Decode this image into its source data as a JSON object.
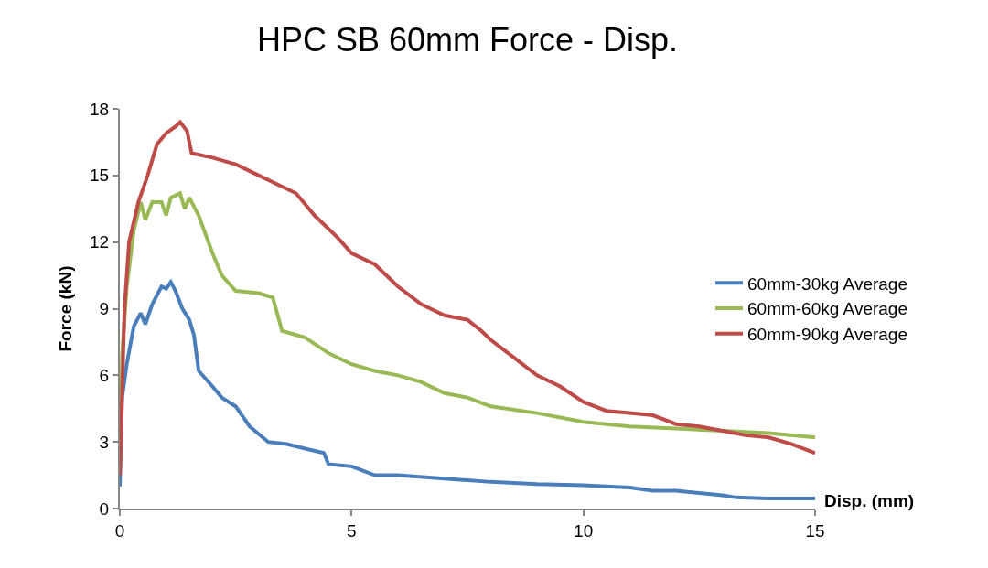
{
  "chart_data": {
    "type": "line",
    "title": "HPC SB 60mm Force - Disp.",
    "xlabel": "Disp. (mm)",
    "ylabel": "Force (kN)",
    "xlim": [
      0,
      15
    ],
    "xticks": [
      0,
      5,
      10,
      15
    ],
    "ylim": [
      0,
      18
    ],
    "yticks": [
      0,
      3,
      6,
      9,
      12,
      15,
      18
    ],
    "grid": false,
    "legend": "right",
    "marker": "none",
    "line_style": "solid",
    "series": [
      {
        "name": "60mm-30kg Average",
        "color": "#4a7ebb",
        "x": [
          0,
          0.05,
          0.15,
          0.3,
          0.45,
          0.55,
          0.7,
          0.9,
          1.0,
          1.1,
          1.2,
          1.35,
          1.5,
          1.6,
          1.7,
          2.0,
          2.2,
          2.5,
          2.8,
          3.2,
          3.6,
          4.0,
          4.4,
          4.5,
          5.0,
          5.5,
          6.0,
          7.0,
          8.0,
          9.0,
          10.0,
          11.0,
          11.5,
          12.0,
          12.5,
          13.0,
          13.3,
          14.0,
          15.0
        ],
        "values": [
          1.0,
          5.0,
          6.5,
          8.2,
          8.8,
          8.3,
          9.2,
          10.0,
          9.9,
          10.2,
          9.8,
          9.0,
          8.5,
          7.8,
          6.2,
          5.5,
          5.0,
          4.6,
          3.7,
          3.0,
          2.9,
          2.7,
          2.5,
          2.0,
          1.9,
          1.5,
          1.5,
          1.35,
          1.2,
          1.1,
          1.05,
          0.95,
          0.8,
          0.8,
          0.7,
          0.6,
          0.5,
          0.45,
          0.45
        ]
      },
      {
        "name": "60mm-60kg Average",
        "color": "#98b954",
        "x": [
          0,
          0.05,
          0.15,
          0.3,
          0.45,
          0.55,
          0.7,
          0.9,
          1.0,
          1.1,
          1.3,
          1.4,
          1.5,
          1.7,
          2.0,
          2.2,
          2.5,
          3.0,
          3.3,
          3.5,
          4.0,
          4.5,
          5.0,
          5.5,
          6.0,
          6.5,
          7.0,
          7.5,
          8.0,
          9.0,
          10.0,
          11.0,
          12.0,
          13.0,
          14.0,
          15.0
        ],
        "values": [
          1.6,
          7,
          10,
          12.5,
          13.8,
          13.0,
          13.8,
          13.8,
          13.2,
          14.0,
          14.2,
          13.5,
          14.0,
          13.2,
          11.5,
          10.5,
          9.8,
          9.7,
          9.5,
          8.0,
          7.7,
          7.0,
          6.5,
          6.2,
          6.0,
          5.7,
          5.2,
          5.0,
          4.6,
          4.3,
          3.9,
          3.7,
          3.6,
          3.5,
          3.4,
          3.2
        ]
      },
      {
        "name": "60mm-90kg Average",
        "color": "#be4b48",
        "x": [
          0,
          0.1,
          0.2,
          0.4,
          0.6,
          0.8,
          1.0,
          1.2,
          1.3,
          1.45,
          1.55,
          2.0,
          2.5,
          3.0,
          3.5,
          3.8,
          4.2,
          4.7,
          5.0,
          5.5,
          6.0,
          6.5,
          7.0,
          7.5,
          7.8,
          8.0,
          8.5,
          9.0,
          9.5,
          10.0,
          10.5,
          11.0,
          11.5,
          12.0,
          12.5,
          13.0,
          13.5,
          14.0,
          14.5,
          15.0
        ],
        "values": [
          1.5,
          9,
          12,
          13.8,
          15,
          16.4,
          16.9,
          17.2,
          17.4,
          17.0,
          16.0,
          15.8,
          15.5,
          15.0,
          14.5,
          14.2,
          13.2,
          12.2,
          11.5,
          11.0,
          10.0,
          9.2,
          8.7,
          8.5,
          8.0,
          7.6,
          6.8,
          6.0,
          5.5,
          4.8,
          4.4,
          4.3,
          4.2,
          3.8,
          3.7,
          3.5,
          3.3,
          3.2,
          2.9,
          2.5
        ]
      }
    ]
  }
}
